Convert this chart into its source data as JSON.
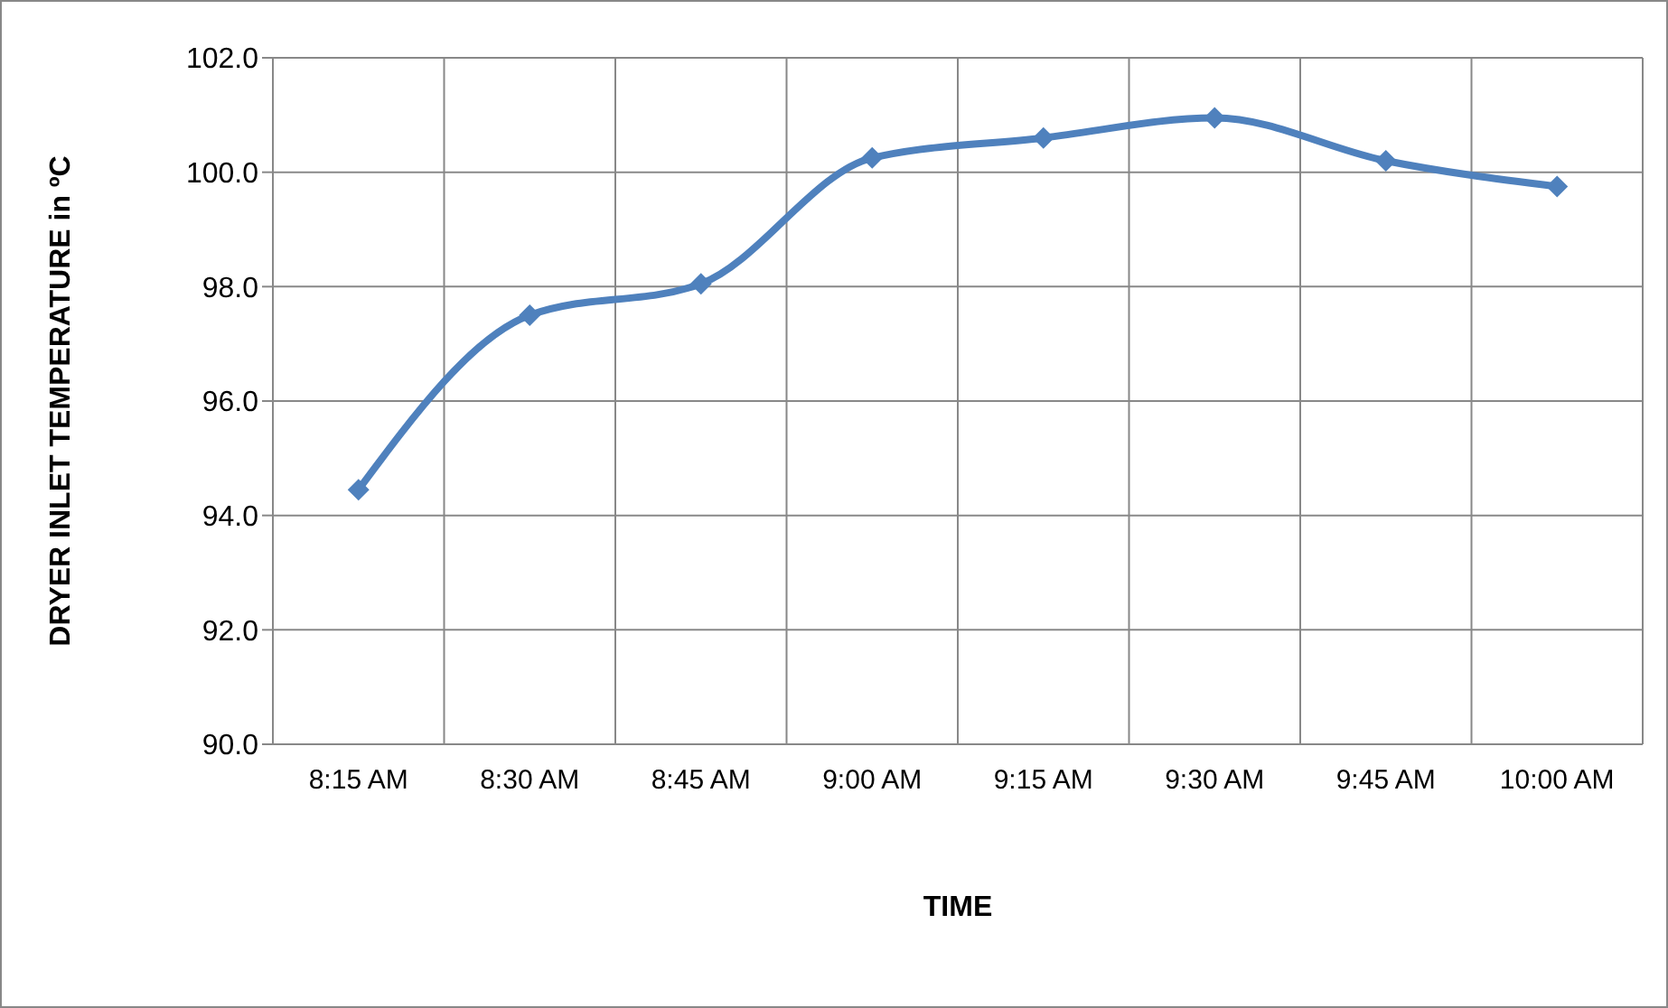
{
  "chart_data": {
    "type": "line",
    "xlabel": "TIME",
    "ylabel": "DRYER INLET TEMPERATURE in ºC",
    "categories": [
      "8:15 AM",
      "8:30 AM",
      "8:45 AM",
      "9:00 AM",
      "9:15 AM",
      "9:30 AM",
      "9:45 AM",
      "10:00 AM"
    ],
    "series": [
      {
        "color": "#4f81bd",
        "values": [
          94.45,
          97.5,
          98.05,
          100.25,
          100.6,
          100.95,
          100.2,
          99.75
        ]
      }
    ],
    "ylim": [
      90,
      102
    ],
    "yticks": [
      {
        "value": 90,
        "label": "90.0"
      },
      {
        "value": 92,
        "label": "92.0"
      },
      {
        "value": 94,
        "label": "94.0"
      },
      {
        "value": 96,
        "label": "96.0"
      },
      {
        "value": 98,
        "label": "98.0"
      },
      {
        "value": 100,
        "label": "100.0"
      },
      {
        "value": 102,
        "label": "102.0"
      }
    ],
    "grid": true,
    "marker": "diamond",
    "line_style": "solid"
  }
}
